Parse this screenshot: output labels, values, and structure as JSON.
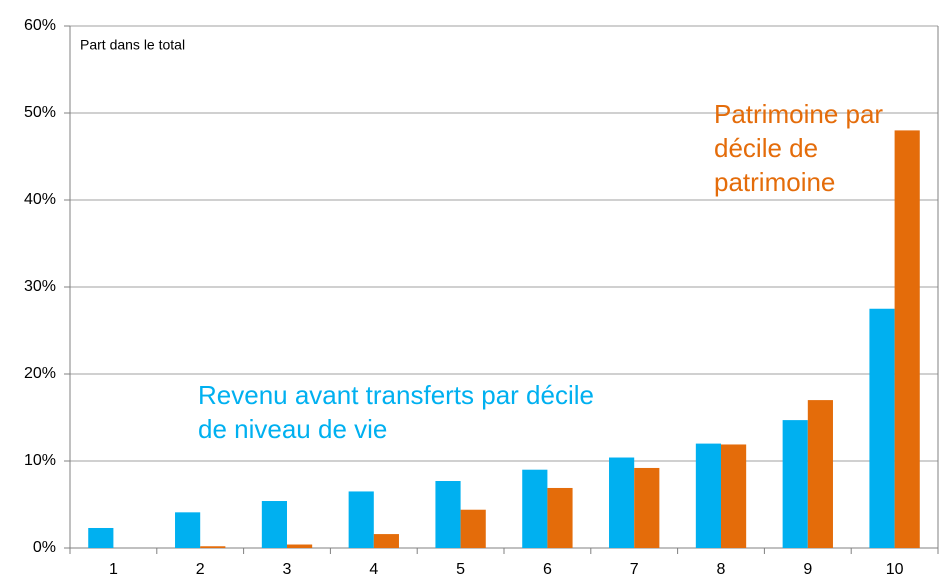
{
  "chart_data": {
    "type": "bar",
    "axis_label": "Part dans le total",
    "categories": [
      "1",
      "2",
      "3",
      "4",
      "5",
      "6",
      "7",
      "8",
      "9",
      "10"
    ],
    "series": [
      {
        "name": "Revenu avant transferts par décile de niveau de vie",
        "color": "#00b0f0",
        "values": [
          2.3,
          4.1,
          5.4,
          6.5,
          7.7,
          9.0,
          10.4,
          12.0,
          14.7,
          27.5
        ]
      },
      {
        "name": "Patrimoine par décile de patrimoine",
        "color": "#e46c0a",
        "values": [
          0,
          0.2,
          0.4,
          1.6,
          4.4,
          6.9,
          9.2,
          11.9,
          17.0,
          48.0
        ]
      }
    ],
    "ylim": [
      0,
      60
    ],
    "yticks": [
      {
        "value": 0,
        "label": "0%"
      },
      {
        "value": 10,
        "label": "10%"
      },
      {
        "value": 20,
        "label": "20%"
      },
      {
        "value": 30,
        "label": "30%"
      },
      {
        "value": 40,
        "label": "40%"
      },
      {
        "value": 50,
        "label": "50%"
      },
      {
        "value": 60,
        "label": "60%"
      }
    ],
    "grid": true
  }
}
